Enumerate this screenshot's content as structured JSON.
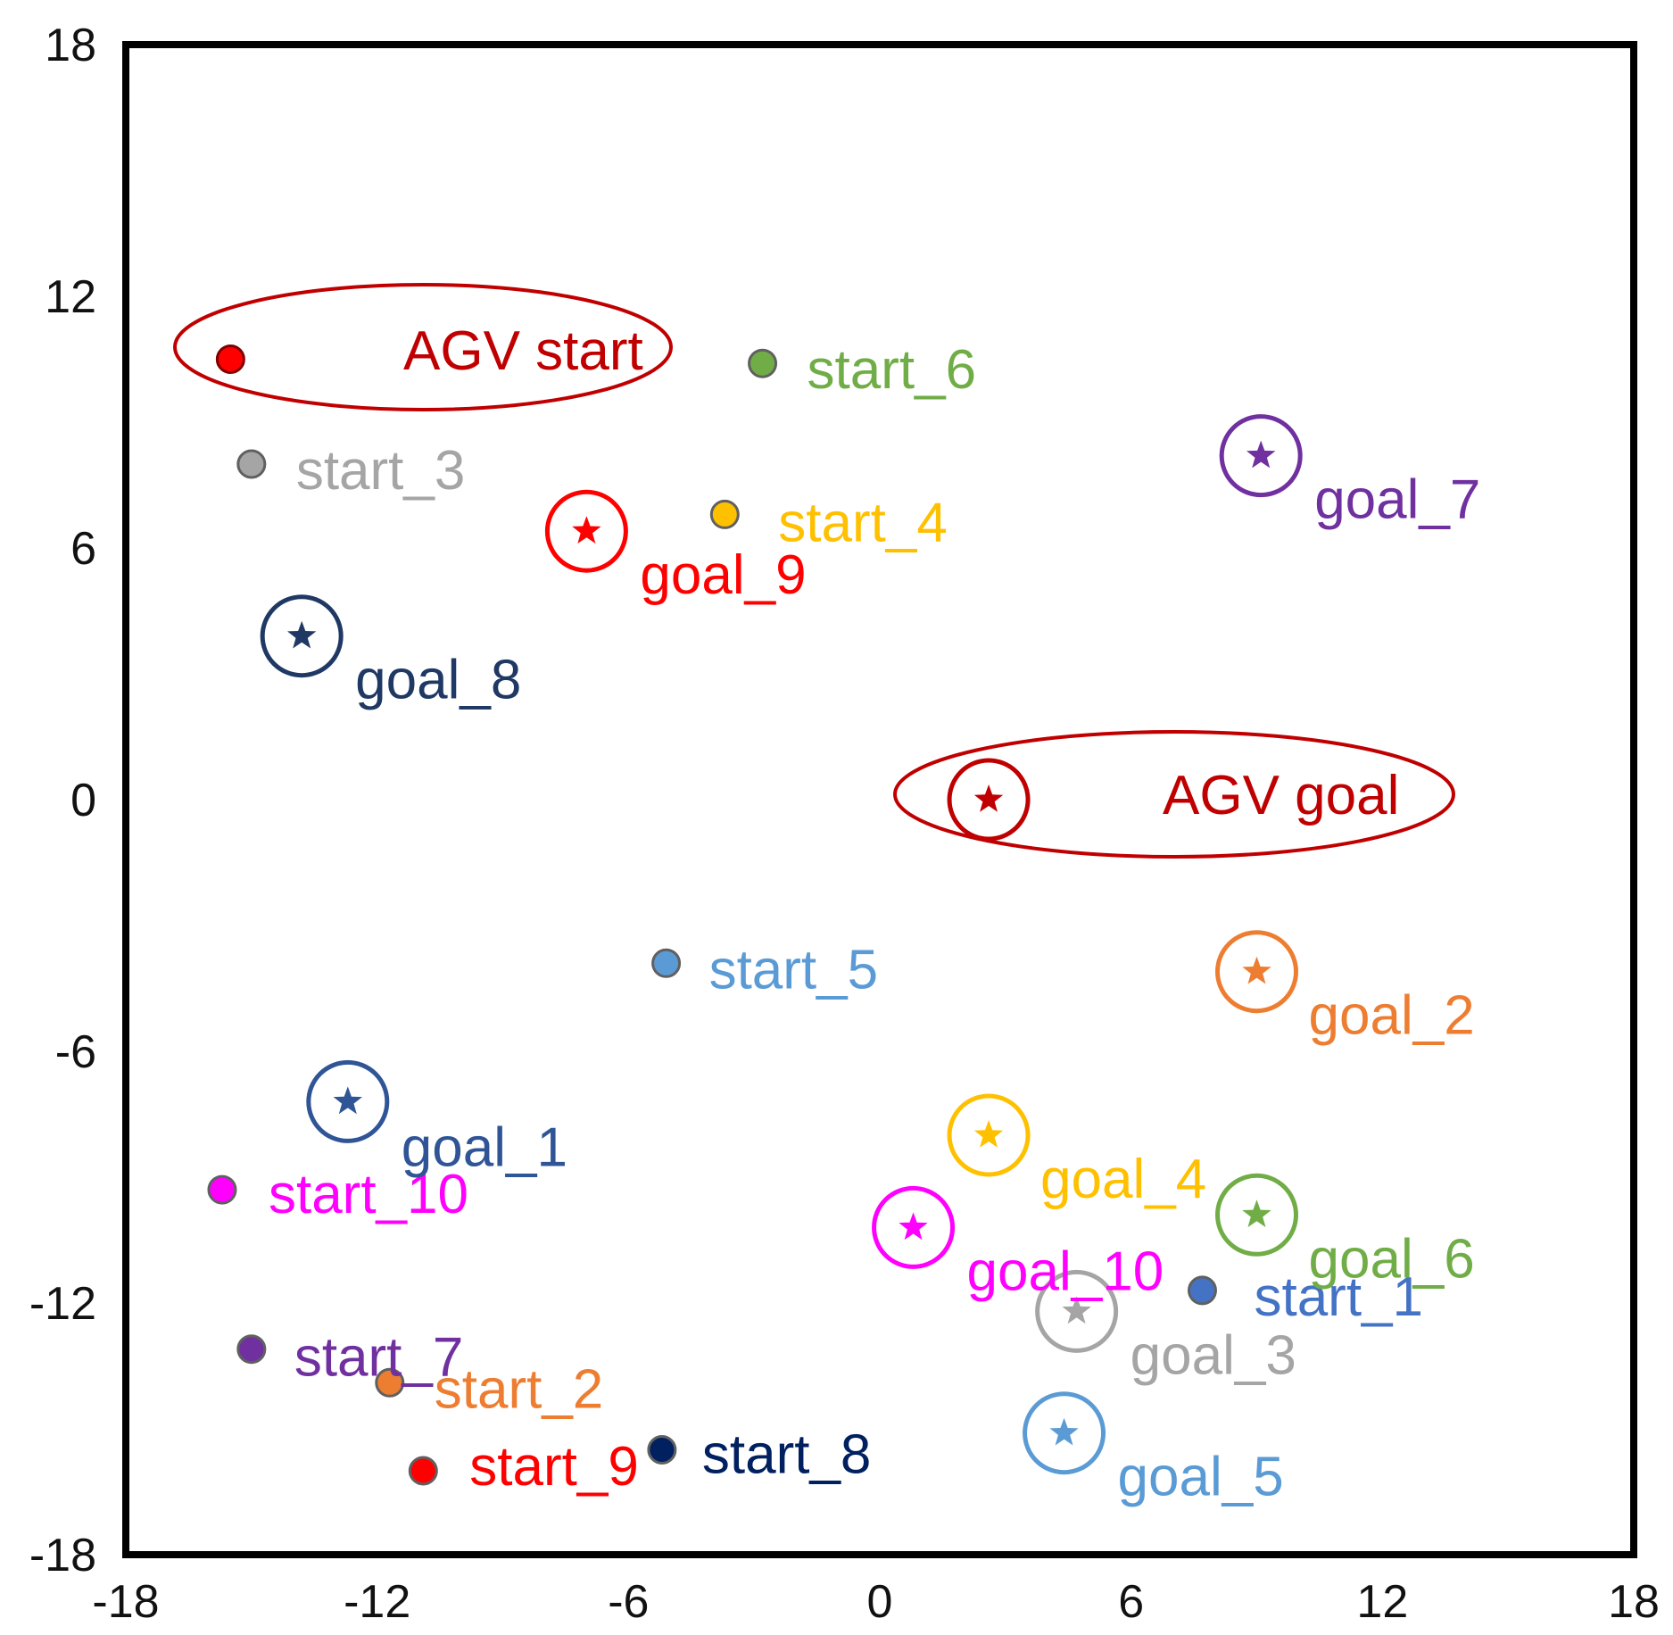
{
  "chart_data": {
    "type": "scatter",
    "title": "",
    "xlabel": "",
    "ylabel": "",
    "xlim": [
      -18,
      18
    ],
    "ylim": [
      -18,
      18
    ],
    "x_ticks": [
      -18,
      -12,
      -6,
      0,
      6,
      12,
      18
    ],
    "y_ticks": [
      18,
      12,
      6,
      0,
      -6,
      -12,
      -18
    ],
    "x_tick_labels": [
      "-18",
      "-12",
      "-6",
      "0",
      "6",
      "12",
      "18"
    ],
    "y_tick_labels": [
      "18",
      "12",
      "6",
      "0",
      "-6",
      "-12",
      "-18"
    ],
    "grid": false,
    "starts": [
      {
        "label": "start_1",
        "x": 7.7,
        "y": -11.7,
        "color": "#4472c4"
      },
      {
        "label": "start_2",
        "x": -11.7,
        "y": -13.9,
        "color": "#ed7d31"
      },
      {
        "label": "start_3",
        "x": -15.0,
        "y": 8.0,
        "color": "#a5a5a5"
      },
      {
        "label": "start_4",
        "x": -3.7,
        "y": 6.8,
        "color": "#ffc000"
      },
      {
        "label": "start_5",
        "x": -5.1,
        "y": -3.9,
        "color": "#5b9bd5"
      },
      {
        "label": "start_6",
        "x": -2.8,
        "y": 10.4,
        "color": "#70ad47"
      },
      {
        "label": "start_7",
        "x": -15.0,
        "y": -13.1,
        "color": "#7030a0"
      },
      {
        "label": "start_8",
        "x": -5.2,
        "y": -15.5,
        "color": "#002060"
      },
      {
        "label": "start_9",
        "x": -10.9,
        "y": -16.0,
        "color": "#ff0000"
      },
      {
        "label": "start_10",
        "x": -15.7,
        "y": -9.3,
        "color": "#ff00ff"
      }
    ],
    "goals": [
      {
        "label": "goal_1",
        "x": -12.7,
        "y": -7.2,
        "color": "#2f5597"
      },
      {
        "label": "goal_2",
        "x": 9.0,
        "y": -4.1,
        "color": "#ed7d31"
      },
      {
        "label": "goal_3",
        "x": 4.7,
        "y": -12.2,
        "color": "#a5a5a5"
      },
      {
        "label": "goal_4",
        "x": 2.6,
        "y": -8.0,
        "color": "#ffc000"
      },
      {
        "label": "goal_5",
        "x": 4.4,
        "y": -15.1,
        "color": "#5b9bd5"
      },
      {
        "label": "goal_6",
        "x": 9.0,
        "y": -9.9,
        "color": "#70ad47"
      },
      {
        "label": "goal_7",
        "x": 9.1,
        "y": 8.2,
        "color": "#7030a0"
      },
      {
        "label": "goal_8",
        "x": -13.8,
        "y": 3.9,
        "color": "#1f3864"
      },
      {
        "label": "goal_9",
        "x": -7.0,
        "y": 6.4,
        "color": "#ff0000"
      },
      {
        "label": "goal_10",
        "x": 0.8,
        "y": -10.2,
        "color": "#ff00ff"
      }
    ],
    "agv": {
      "start": {
        "label": "AGV start",
        "x": -15.5,
        "y": 10.5,
        "color": "#c00000"
      },
      "goal": {
        "label": "AGV goal",
        "x": 2.6,
        "y": 0.0,
        "color": "#c00000"
      }
    }
  }
}
